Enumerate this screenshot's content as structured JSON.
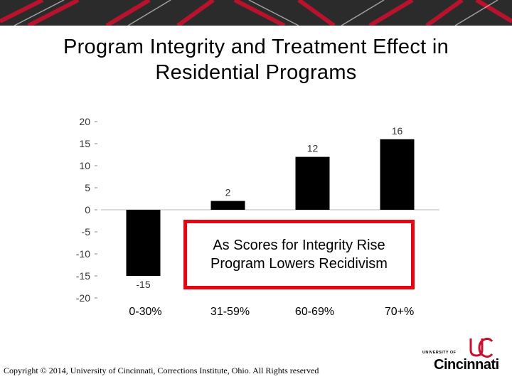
{
  "slide": {
    "title": "Program Integrity and Treatment Effect in Residential Programs",
    "callout_line1": "As Scores for Integrity Rise",
    "callout_line2": "Program Lowers Recidivism",
    "copyright": "Copyright © 2014, University of Cincinnati, Corrections Institute, Ohio. All Rights reserved",
    "logo": {
      "university_of": "UNIVERSITY OF",
      "name": "Cincinnati"
    }
  },
  "colors": {
    "bar": "#000000",
    "callout_border": "#e30613",
    "banner_red": "#c8102e",
    "banner_dark": "#2b2b2b"
  },
  "chart_data": {
    "type": "bar",
    "categories": [
      "0-30%",
      "31-59%",
      "60-69%",
      "70+%"
    ],
    "values": [
      -15,
      2,
      12,
      16
    ],
    "data_labels": [
      "-15",
      "2",
      "12",
      "16"
    ],
    "yticks": [
      20,
      15,
      10,
      5,
      0,
      -5,
      -10,
      -15,
      -20
    ],
    "ylim": [
      -20,
      20
    ],
    "title": "",
    "xlabel": "",
    "ylabel": "",
    "grid": false,
    "legend": "none"
  }
}
